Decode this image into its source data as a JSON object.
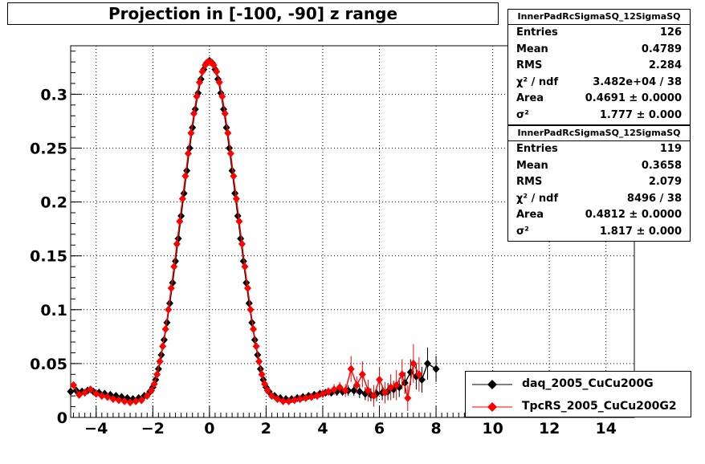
{
  "chart_data": {
    "type": "scatter",
    "title": "Projection in [-100, -90] z range",
    "xlim": [
      -4.9,
      15
    ],
    "ylim": [
      0,
      0.345
    ],
    "x_ticks": [
      -4,
      -2,
      0,
      2,
      4,
      6,
      8,
      10,
      12,
      14
    ],
    "y_ticks": [
      0,
      0.05,
      0.1,
      0.15,
      0.2,
      0.25,
      0.3
    ],
    "x_tick_labels": [
      "−4",
      "−2",
      "0",
      "2",
      "4",
      "6",
      "8",
      "10",
      "12",
      "14"
    ],
    "y_tick_labels": [
      "0",
      "0.05",
      "0.1",
      "0.15",
      "0.2",
      "0.25",
      "0.3"
    ],
    "grid": true,
    "legend_position": "bottom-right",
    "series": [
      {
        "name": "daq_2005_CuCu200G",
        "color": "#000000",
        "marker": "diamond",
        "x": [
          -4.9,
          -4.7,
          -4.5,
          -4.3,
          -4.1,
          -3.9,
          -3.7,
          -3.5,
          -3.3,
          -3.1,
          -2.9,
          -2.7,
          -2.5,
          -2.3,
          -2.1,
          -2.0,
          -1.9,
          -1.8,
          -1.7,
          -1.6,
          -1.5,
          -1.4,
          -1.3,
          -1.2,
          -1.1,
          -1.0,
          -0.9,
          -0.8,
          -0.7,
          -0.6,
          -0.5,
          -0.4,
          -0.3,
          -0.2,
          -0.1,
          0.0,
          0.1,
          0.2,
          0.3,
          0.4,
          0.5,
          0.6,
          0.7,
          0.8,
          0.9,
          1.0,
          1.1,
          1.2,
          1.3,
          1.4,
          1.5,
          1.6,
          1.7,
          1.8,
          1.9,
          2.0,
          2.1,
          2.3,
          2.5,
          2.7,
          2.9,
          3.1,
          3.3,
          3.5,
          3.7,
          3.9,
          4.1,
          4.3,
          4.5,
          4.7,
          4.9,
          5.1,
          5.3,
          5.5,
          5.7,
          5.9,
          6.1,
          6.3,
          6.5,
          6.7,
          6.9,
          7.1,
          7.3,
          7.5,
          7.7,
          8.0
        ],
        "y": [
          0.024,
          0.025,
          0.024,
          0.025,
          0.024,
          0.023,
          0.022,
          0.021,
          0.02,
          0.019,
          0.018,
          0.017,
          0.018,
          0.02,
          0.024,
          0.028,
          0.035,
          0.045,
          0.058,
          0.072,
          0.088,
          0.106,
          0.125,
          0.145,
          0.166,
          0.187,
          0.208,
          0.229,
          0.25,
          0.269,
          0.286,
          0.301,
          0.314,
          0.323,
          0.329,
          0.331,
          0.329,
          0.323,
          0.314,
          0.301,
          0.286,
          0.269,
          0.25,
          0.229,
          0.208,
          0.187,
          0.166,
          0.145,
          0.125,
          0.106,
          0.088,
          0.072,
          0.058,
          0.045,
          0.035,
          0.028,
          0.024,
          0.02,
          0.018,
          0.017,
          0.017,
          0.018,
          0.019,
          0.02,
          0.021,
          0.022,
          0.023,
          0.023,
          0.024,
          0.024,
          0.025,
          0.025,
          0.024,
          0.022,
          0.021,
          0.022,
          0.023,
          0.024,
          0.026,
          0.028,
          0.032,
          0.042,
          0.038,
          0.035,
          0.05,
          0.045
        ],
        "err": [
          0.002,
          0.002,
          0.002,
          0.002,
          0.002,
          0.002,
          0.002,
          0.002,
          0.002,
          0.002,
          0.002,
          0.002,
          0.002,
          0.002,
          0.002,
          0.002,
          0.002,
          0.002,
          0.002,
          0.002,
          0.002,
          0.002,
          0.002,
          0.002,
          0.002,
          0.002,
          0.002,
          0.002,
          0.002,
          0.002,
          0.002,
          0.002,
          0.002,
          0.002,
          0.002,
          0.002,
          0.002,
          0.002,
          0.002,
          0.002,
          0.002,
          0.002,
          0.002,
          0.002,
          0.002,
          0.002,
          0.002,
          0.002,
          0.002,
          0.002,
          0.002,
          0.002,
          0.002,
          0.002,
          0.002,
          0.002,
          0.002,
          0.002,
          0.002,
          0.002,
          0.002,
          0.002,
          0.002,
          0.002,
          0.003,
          0.003,
          0.003,
          0.003,
          0.004,
          0.004,
          0.005,
          0.005,
          0.006,
          0.006,
          0.006,
          0.007,
          0.007,
          0.008,
          0.008,
          0.009,
          0.01,
          0.012,
          0.012,
          0.012,
          0.015,
          0.012
        ]
      },
      {
        "name": "TpcRS_2005_CuCu200G2",
        "color": "#ff0000",
        "marker": "diamond",
        "x": [
          -4.8,
          -4.6,
          -4.4,
          -4.2,
          -4.0,
          -3.8,
          -3.6,
          -3.4,
          -3.2,
          -3.0,
          -2.8,
          -2.6,
          -2.4,
          -2.2,
          -2.05,
          -1.95,
          -1.85,
          -1.75,
          -1.65,
          -1.55,
          -1.45,
          -1.35,
          -1.25,
          -1.15,
          -1.05,
          -0.95,
          -0.85,
          -0.75,
          -0.65,
          -0.55,
          -0.45,
          -0.35,
          -0.25,
          -0.15,
          -0.05,
          0.05,
          0.15,
          0.25,
          0.35,
          0.45,
          0.55,
          0.65,
          0.75,
          0.85,
          0.95,
          1.05,
          1.15,
          1.25,
          1.35,
          1.45,
          1.55,
          1.65,
          1.75,
          1.85,
          1.95,
          2.05,
          2.2,
          2.4,
          2.6,
          2.8,
          3.0,
          3.2,
          3.4,
          3.6,
          3.8,
          4.0,
          4.2,
          4.4,
          4.6,
          4.8,
          5.0,
          5.2,
          5.4,
          5.6,
          5.8,
          6.0,
          6.2,
          6.4,
          6.6,
          6.8,
          7.0,
          7.2,
          7.4
        ],
        "y": [
          0.03,
          0.021,
          0.023,
          0.026,
          0.022,
          0.02,
          0.019,
          0.017,
          0.016,
          0.015,
          0.014,
          0.015,
          0.016,
          0.02,
          0.025,
          0.031,
          0.04,
          0.052,
          0.066,
          0.082,
          0.1,
          0.12,
          0.14,
          0.161,
          0.182,
          0.203,
          0.224,
          0.245,
          0.264,
          0.282,
          0.298,
          0.311,
          0.321,
          0.327,
          0.33,
          0.33,
          0.327,
          0.321,
          0.311,
          0.298,
          0.282,
          0.264,
          0.245,
          0.224,
          0.203,
          0.182,
          0.161,
          0.14,
          0.12,
          0.1,
          0.082,
          0.066,
          0.052,
          0.04,
          0.031,
          0.025,
          0.02,
          0.017,
          0.015,
          0.015,
          0.016,
          0.017,
          0.018,
          0.019,
          0.02,
          0.022,
          0.024,
          0.026,
          0.028,
          0.025,
          0.045,
          0.03,
          0.04,
          0.025,
          0.02,
          0.035,
          0.023,
          0.028,
          0.03,
          0.04,
          0.018,
          0.05,
          0.04
        ],
        "err": [
          0.003,
          0.003,
          0.003,
          0.003,
          0.003,
          0.003,
          0.003,
          0.003,
          0.003,
          0.003,
          0.003,
          0.003,
          0.003,
          0.003,
          0.003,
          0.003,
          0.003,
          0.003,
          0.003,
          0.003,
          0.003,
          0.003,
          0.003,
          0.003,
          0.003,
          0.003,
          0.003,
          0.003,
          0.003,
          0.003,
          0.003,
          0.003,
          0.003,
          0.003,
          0.003,
          0.003,
          0.003,
          0.003,
          0.003,
          0.003,
          0.003,
          0.003,
          0.003,
          0.003,
          0.003,
          0.003,
          0.003,
          0.003,
          0.003,
          0.003,
          0.003,
          0.003,
          0.003,
          0.003,
          0.003,
          0.003,
          0.003,
          0.003,
          0.003,
          0.003,
          0.003,
          0.003,
          0.003,
          0.003,
          0.003,
          0.004,
          0.004,
          0.005,
          0.005,
          0.006,
          0.012,
          0.008,
          0.012,
          0.01,
          0.01,
          0.012,
          0.01,
          0.012,
          0.014,
          0.014,
          0.012,
          0.018,
          0.016
        ]
      }
    ]
  },
  "stats_boxes": [
    {
      "header": "InnerPadRcSigmaSQ_12SigmaSQ",
      "rows": [
        {
          "label": "Entries",
          "value": "126"
        },
        {
          "label": "Mean",
          "value": "0.4789"
        },
        {
          "label": "RMS",
          "value": "2.284"
        },
        {
          "label": "χ² / ndf",
          "value": "3.482e+04 / 38"
        },
        {
          "label": "Area",
          "value": "0.4691 ± 0.0000"
        },
        {
          "label": "σ²",
          "value": "1.777 ± 0.000"
        }
      ]
    },
    {
      "header": "InnerPadRcSigmaSQ_12SigmaSQ",
      "rows": [
        {
          "label": "Entries",
          "value": "119"
        },
        {
          "label": "Mean",
          "value": "0.3658"
        },
        {
          "label": "RMS",
          "value": "2.079"
        },
        {
          "label": "χ² / ndf",
          "value": "8496 / 38"
        },
        {
          "label": "Area",
          "value": "0.4812 ± 0.0000"
        },
        {
          "label": "σ²",
          "value": "1.817 ± 0.000"
        }
      ]
    }
  ]
}
